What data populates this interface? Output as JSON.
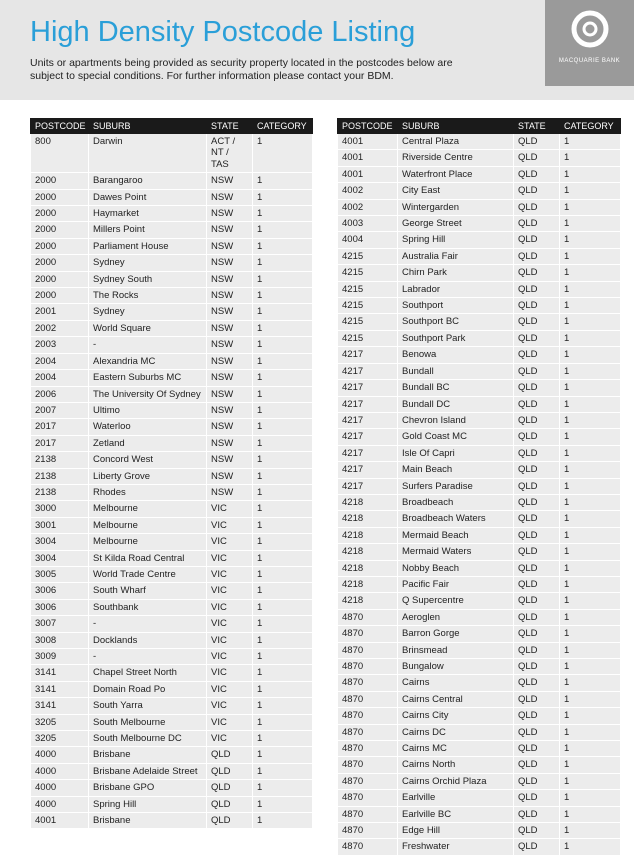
{
  "header": {
    "title": "High Density Postcode Listing",
    "subtitle": "Units or apartments being provided as security property located in the postcodes below are subject to special conditions. For further information please contact your BDM.",
    "logo": "MACQUARIE BANK"
  },
  "left_table": {
    "columns": [
      "POSTCODE",
      "SUBURB",
      "STATE",
      "CATEGORY"
    ],
    "rows": [
      [
        "800",
        "Darwin",
        "ACT / NT / TAS",
        "1"
      ],
      [
        "2000",
        "Barangaroo",
        "NSW",
        "1"
      ],
      [
        "2000",
        "Dawes Point",
        "NSW",
        "1"
      ],
      [
        "2000",
        "Haymarket",
        "NSW",
        "1"
      ],
      [
        "2000",
        "Millers Point",
        "NSW",
        "1"
      ],
      [
        "2000",
        "Parliament House",
        "NSW",
        "1"
      ],
      [
        "2000",
        "Sydney",
        "NSW",
        "1"
      ],
      [
        "2000",
        "Sydney South",
        "NSW",
        "1"
      ],
      [
        "2000",
        "The Rocks",
        "NSW",
        "1"
      ],
      [
        "2001",
        "Sydney",
        "NSW",
        "1"
      ],
      [
        "2002",
        "World Square",
        "NSW",
        "1"
      ],
      [
        "2003",
        "-",
        "NSW",
        "1"
      ],
      [
        "2004",
        "Alexandria MC",
        "NSW",
        "1"
      ],
      [
        "2004",
        "Eastern Suburbs MC",
        "NSW",
        "1"
      ],
      [
        "2006",
        "The University Of Sydney",
        "NSW",
        "1"
      ],
      [
        "2007",
        "Ultimo",
        "NSW",
        "1"
      ],
      [
        "2017",
        "Waterloo",
        "NSW",
        "1"
      ],
      [
        "2017",
        "Zetland",
        "NSW",
        "1"
      ],
      [
        "2138",
        "Concord West",
        "NSW",
        "1"
      ],
      [
        "2138",
        "Liberty Grove",
        "NSW",
        "1"
      ],
      [
        "2138",
        "Rhodes",
        "NSW",
        "1"
      ],
      [
        "3000",
        "Melbourne",
        "VIC",
        "1"
      ],
      [
        "3001",
        "Melbourne",
        "VIC",
        "1"
      ],
      [
        "3004",
        "Melbourne",
        "VIC",
        "1"
      ],
      [
        "3004",
        "St Kilda Road Central",
        "VIC",
        "1"
      ],
      [
        "3005",
        "World Trade Centre",
        "VIC",
        "1"
      ],
      [
        "3006",
        "South Wharf",
        "VIC",
        "1"
      ],
      [
        "3006",
        "Southbank",
        "VIC",
        "1"
      ],
      [
        "3007",
        "-",
        "VIC",
        "1"
      ],
      [
        "3008",
        "Docklands",
        "VIC",
        "1"
      ],
      [
        "3009",
        "-",
        "VIC",
        "1"
      ],
      [
        "3141",
        "Chapel Street North",
        "VIC",
        "1"
      ],
      [
        "3141",
        "Domain Road Po",
        "VIC",
        "1"
      ],
      [
        "3141",
        "South Yarra",
        "VIC",
        "1"
      ],
      [
        "3205",
        "South Melbourne",
        "VIC",
        "1"
      ],
      [
        "3205",
        "South Melbourne DC",
        "VIC",
        "1"
      ],
      [
        "4000",
        "Brisbane",
        "QLD",
        "1"
      ],
      [
        "4000",
        "Brisbane Adelaide Street",
        "QLD",
        "1"
      ],
      [
        "4000",
        "Brisbane GPO",
        "QLD",
        "1"
      ],
      [
        "4000",
        "Spring Hill",
        "QLD",
        "1"
      ],
      [
        "4001",
        "Brisbane",
        "QLD",
        "1"
      ]
    ]
  },
  "right_table": {
    "columns": [
      "POSTCODE",
      "SUBURB",
      "STATE",
      "CATEGORY"
    ],
    "rows": [
      [
        "4001",
        "Central Plaza",
        "QLD",
        "1"
      ],
      [
        "4001",
        "Riverside Centre",
        "QLD",
        "1"
      ],
      [
        "4001",
        "Waterfront Place",
        "QLD",
        "1"
      ],
      [
        "4002",
        "City East",
        "QLD",
        "1"
      ],
      [
        "4002",
        "Wintergarden",
        "QLD",
        "1"
      ],
      [
        "4003",
        "George Street",
        "QLD",
        "1"
      ],
      [
        "4004",
        "Spring Hill",
        "QLD",
        "1"
      ],
      [
        "4215",
        "Australia Fair",
        "QLD",
        "1"
      ],
      [
        "4215",
        "Chirn Park",
        "QLD",
        "1"
      ],
      [
        "4215",
        "Labrador",
        "QLD",
        "1"
      ],
      [
        "4215",
        "Southport",
        "QLD",
        "1"
      ],
      [
        "4215",
        "Southport BC",
        "QLD",
        "1"
      ],
      [
        "4215",
        "Southport Park",
        "QLD",
        "1"
      ],
      [
        "4217",
        "Benowa",
        "QLD",
        "1"
      ],
      [
        "4217",
        "Bundall",
        "QLD",
        "1"
      ],
      [
        "4217",
        "Bundall BC",
        "QLD",
        "1"
      ],
      [
        "4217",
        "Bundall DC",
        "QLD",
        "1"
      ],
      [
        "4217",
        "Chevron Island",
        "QLD",
        "1"
      ],
      [
        "4217",
        "Gold Coast MC",
        "QLD",
        "1"
      ],
      [
        "4217",
        "Isle Of Capri",
        "QLD",
        "1"
      ],
      [
        "4217",
        "Main Beach",
        "QLD",
        "1"
      ],
      [
        "4217",
        "Surfers Paradise",
        "QLD",
        "1"
      ],
      [
        "4218",
        "Broadbeach",
        "QLD",
        "1"
      ],
      [
        "4218",
        "Broadbeach Waters",
        "QLD",
        "1"
      ],
      [
        "4218",
        "Mermaid Beach",
        "QLD",
        "1"
      ],
      [
        "4218",
        "Mermaid Waters",
        "QLD",
        "1"
      ],
      [
        "4218",
        "Nobby Beach",
        "QLD",
        "1"
      ],
      [
        "4218",
        "Pacific Fair",
        "QLD",
        "1"
      ],
      [
        "4218",
        "Q Supercentre",
        "QLD",
        "1"
      ],
      [
        "4870",
        "Aeroglen",
        "QLD",
        "1"
      ],
      [
        "4870",
        "Barron Gorge",
        "QLD",
        "1"
      ],
      [
        "4870",
        "Brinsmead",
        "QLD",
        "1"
      ],
      [
        "4870",
        "Bungalow",
        "QLD",
        "1"
      ],
      [
        "4870",
        "Cairns",
        "QLD",
        "1"
      ],
      [
        "4870",
        "Cairns Central",
        "QLD",
        "1"
      ],
      [
        "4870",
        "Cairns City",
        "QLD",
        "1"
      ],
      [
        "4870",
        "Cairns DC",
        "QLD",
        "1"
      ],
      [
        "4870",
        "Cairns MC",
        "QLD",
        "1"
      ],
      [
        "4870",
        "Cairns North",
        "QLD",
        "1"
      ],
      [
        "4870",
        "Cairns Orchid Plaza",
        "QLD",
        "1"
      ],
      [
        "4870",
        "Earlville",
        "QLD",
        "1"
      ],
      [
        "4870",
        "Earlville BC",
        "QLD",
        "1"
      ],
      [
        "4870",
        "Edge Hill",
        "QLD",
        "1"
      ],
      [
        "4870",
        "Freshwater",
        "QLD",
        "1"
      ]
    ]
  }
}
